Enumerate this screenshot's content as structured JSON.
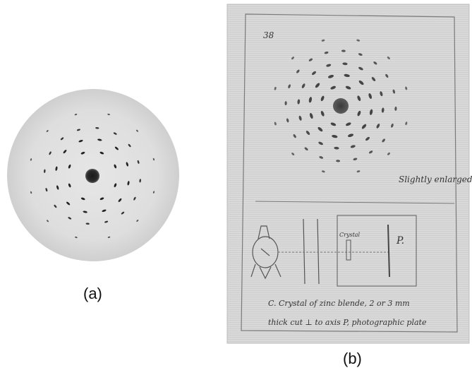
{
  "figure": {
    "panel_a": {
      "caption": "(a)"
    },
    "panel_b": {
      "caption": "(b)",
      "notebook": {
        "page_number": "38",
        "margin_note": "Slightly enlarged",
        "crystal_label": "Crystal",
        "plate_label": "P.",
        "note_line1": "C.  Crystal of zinc blende, 2 or 3 mm",
        "note_line2": "thick cut ⊥ to axis     P, photographic plate"
      }
    }
  }
}
